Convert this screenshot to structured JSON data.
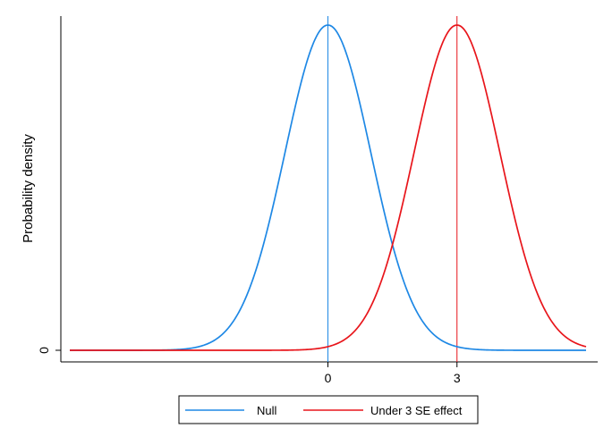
{
  "chart_data": {
    "type": "line",
    "title": "",
    "xlabel": "",
    "ylabel": "Probability density",
    "xlim": [
      -6,
      6
    ],
    "ylim": [
      0,
      0.399
    ],
    "x_ticks": [
      0,
      3
    ],
    "y_ticks": [
      0
    ],
    "grid": false,
    "legend_position": "bottom",
    "series": [
      {
        "name": "Null",
        "distribution": "normal",
        "mean": 0,
        "sd": 1,
        "x_range": [
          -6,
          6
        ],
        "color": "#1E88E5",
        "vline": 0
      },
      {
        "name": "Under 3 SE effect",
        "distribution": "normal",
        "mean": 3,
        "sd": 1,
        "x_range": [
          -6,
          6
        ],
        "color": "#E8151B",
        "vline": 3
      }
    ]
  }
}
